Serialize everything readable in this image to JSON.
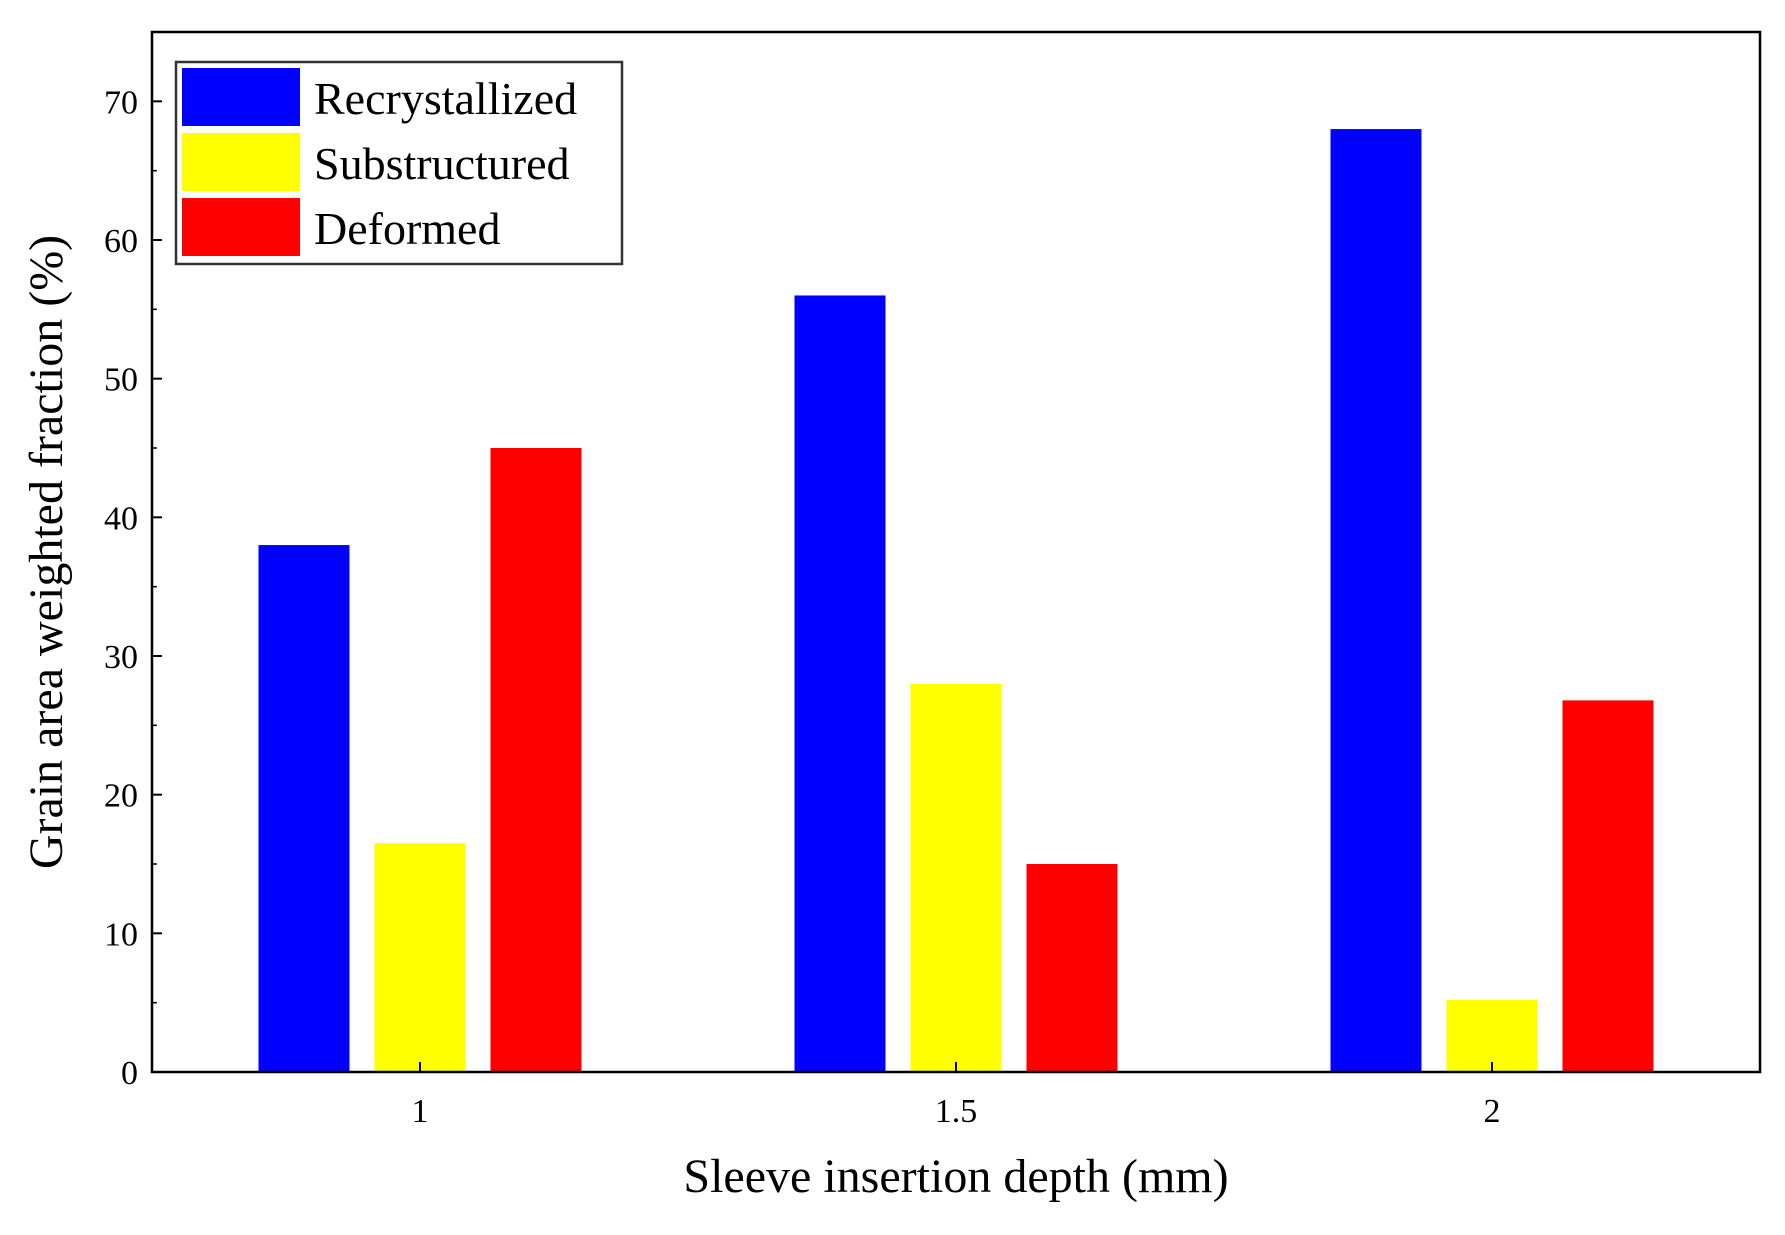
{
  "chart_data": {
    "type": "bar",
    "title": "",
    "xlabel": "Sleeve insertion depth (mm)",
    "ylabel": "Grain area weighted fraction (%)",
    "categories": [
      "1",
      "1.5",
      "2"
    ],
    "series": [
      {
        "name": "Recrystallized",
        "color": "#0000ff",
        "values": [
          38,
          56,
          68
        ]
      },
      {
        "name": "Substructured",
        "color": "#ffff00",
        "values": [
          16.5,
          28,
          5.2
        ]
      },
      {
        "name": "Deformed",
        "color": "#ff0000",
        "values": [
          45,
          15,
          26.8
        ]
      }
    ],
    "ylim": [
      0,
      75
    ],
    "yticks": [
      "0",
      "10",
      "20",
      "30",
      "40",
      "50",
      "60",
      "70"
    ],
    "grid": false,
    "legend_position": "top-left"
  }
}
